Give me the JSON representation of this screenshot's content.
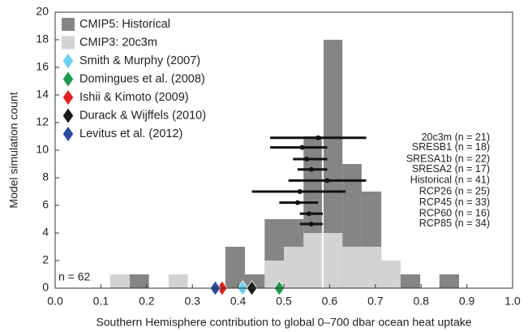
{
  "chart_data": {
    "type": "histogram",
    "xlabel": "Southern Hemisphere contribution to global 0–700 dbar ocean heat uptake",
    "ylabel": "Model simulation count",
    "annotation": "n = 62",
    "xlim": [
      0,
      1
    ],
    "ylim": [
      0,
      20
    ],
    "xticks": [
      {
        "value": 0,
        "label": "0.0"
      },
      0.1,
      0.2,
      0.3,
      0.4,
      0.5,
      0.6,
      0.7,
      0.8,
      0.9,
      {
        "value": 1,
        "label": "1.0"
      }
    ],
    "yticks": [
      0,
      2,
      4,
      6,
      8,
      10,
      12,
      14,
      16,
      18,
      20
    ],
    "bins": [
      0.12,
      0.163,
      0.205,
      0.248,
      0.29,
      0.33,
      0.372,
      0.415,
      0.458,
      0.5,
      0.543,
      0.585,
      0.628,
      0.67,
      0.713,
      0.755,
      0.798,
      0.84,
      0.883
    ],
    "series": [
      {
        "name": "CMIP5: Historical",
        "color": "#858585",
        "values": [
          0,
          1,
          0,
          0,
          0,
          0,
          3,
          1,
          5,
          5,
          11,
          18,
          9,
          7,
          0,
          1,
          0,
          1
        ]
      },
      {
        "name": "CMIP3: 20c3m",
        "color": "#d3d3d3",
        "values": [
          1,
          0,
          0,
          1,
          0,
          0,
          0,
          0,
          2,
          3,
          4,
          4,
          3,
          3,
          2,
          0,
          0,
          0
        ]
      }
    ],
    "mean_line": 0.585,
    "observations": [
      {
        "name": "Smith & Murphy (2007)",
        "color": "#6ccdf2",
        "x": 0.41,
        "y": 0
      },
      {
        "name": "Domingues et al. (2008)",
        "color": "#1f9a4a",
        "x": 0.49,
        "y": 0
      },
      {
        "name": "Ishii & Kimoto (2009)",
        "color": "#e02020",
        "x": 0.365,
        "y": 0
      },
      {
        "name": "Durack & Wijffels (2010)",
        "color": "#1a1a1a",
        "x": 0.43,
        "y": 0
      },
      {
        "name": "Levitus et al. (2012)",
        "color": "#2a4a9e",
        "x": 0.35,
        "y": 0
      }
    ],
    "scenarios": [
      {
        "label": "20c3m (n = 21)",
        "y": 10.9,
        "center": 0.575,
        "low": 0.47,
        "high": 0.68
      },
      {
        "label": "SRESB1 (n = 18)",
        "y": 10.2,
        "center": 0.54,
        "low": 0.47,
        "high": 0.595
      },
      {
        "label": "SRESA1b (n = 22)",
        "y": 9.35,
        "center": 0.55,
        "low": 0.52,
        "high": 0.595
      },
      {
        "label": "SRESA2 (n = 17)",
        "y": 8.6,
        "center": 0.56,
        "low": 0.53,
        "high": 0.595
      },
      {
        "label": "Historical (n = 41)",
        "y": 7.8,
        "center": 0.595,
        "low": 0.51,
        "high": 0.68
      },
      {
        "label": "RCP26 (n = 25)",
        "y": 7.0,
        "center": 0.535,
        "low": 0.43,
        "high": 0.635
      },
      {
        "label": "RCP45 (n = 33)",
        "y": 6.2,
        "center": 0.53,
        "low": 0.49,
        "high": 0.575
      },
      {
        "label": "RCP60 (n = 16)",
        "y": 5.4,
        "center": 0.555,
        "low": 0.535,
        "high": 0.585
      },
      {
        "label": "RCP85 (n = 34)",
        "y": 4.65,
        "center": 0.56,
        "low": 0.535,
        "high": 0.585
      }
    ],
    "legend": "upper left"
  }
}
